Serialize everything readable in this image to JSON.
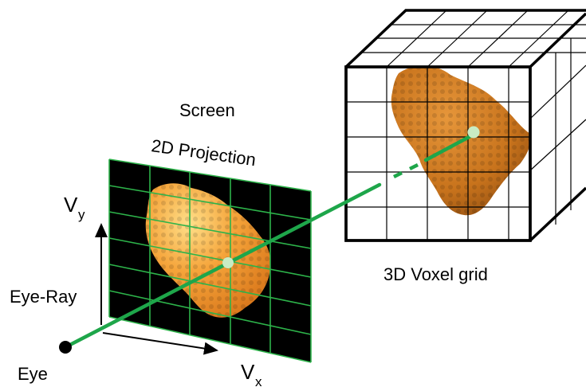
{
  "labels": {
    "screen": "Screen",
    "projection": "2D Projection",
    "voxel_grid": "3D Voxel grid",
    "eye_ray": "Eye-Ray",
    "eye": "Eye",
    "vy_main": "V",
    "vy_sub": "y",
    "vx_main": "V",
    "vx_sub": "x"
  },
  "colors": {
    "grid_green": "#2db34a",
    "ray_green": "#1ea64a",
    "screen_bg": "#000000",
    "molecule_orange": "#e98a1a",
    "molecule_dark": "#8a4a10",
    "sample_point": "#c8ecc4"
  }
}
